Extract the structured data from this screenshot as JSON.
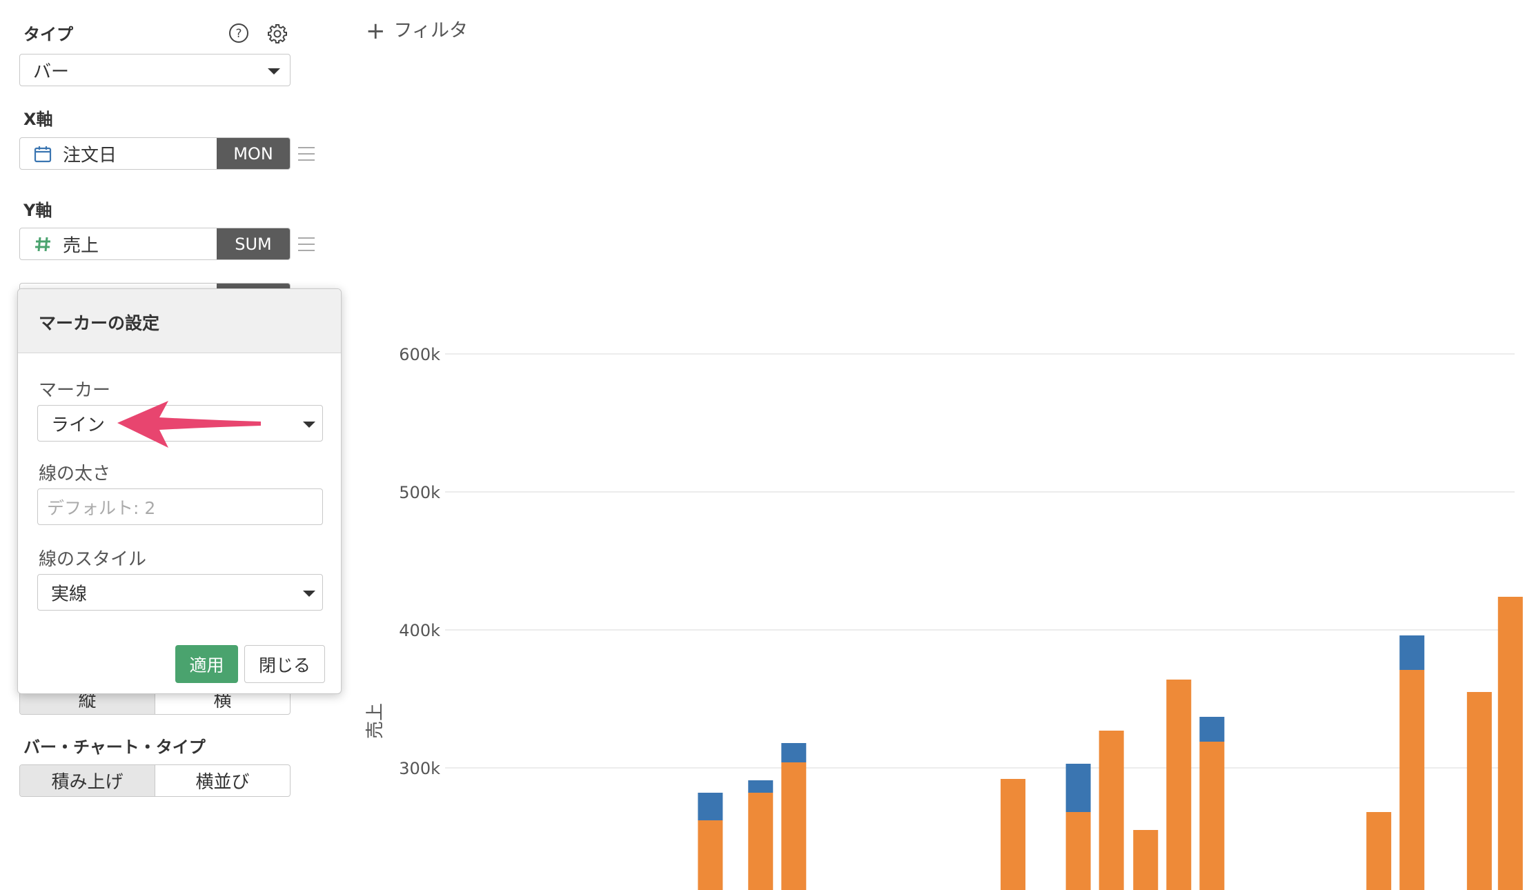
{
  "sidebar": {
    "type_label": "タイプ",
    "type_value": "バー",
    "x_axis_label": "X軸",
    "x_field": {
      "name": "注文日",
      "tag": "MON",
      "icon": "calendar-icon"
    },
    "y_axis_label": "Y軸",
    "y_field": {
      "name": "売上",
      "tag": "SUM",
      "icon": "hash-icon"
    },
    "orientation": {
      "options": [
        "縦",
        "横"
      ],
      "selected": "縦"
    },
    "bar_chart_type_label": "バー・チャート・タイプ",
    "bar_chart_type": {
      "options": [
        "積み上げ",
        "横並び"
      ],
      "selected": "積み上げ"
    }
  },
  "popover": {
    "title": "マーカーの設定",
    "marker_label": "マーカー",
    "marker_value": "ライン",
    "width_label": "線の太さ",
    "width_placeholder": "デフォルト: 2",
    "style_label": "線のスタイル",
    "style_value": "実線",
    "apply_label": "適用",
    "close_label": "閉じる"
  },
  "filter": {
    "add_label": "フィルタ"
  },
  "colors": {
    "orange": "#ee8a38",
    "blue": "#3a75b1",
    "apply_green": "#4aa36e",
    "arrow": "#e8456f"
  },
  "chart_data": {
    "type": "bar",
    "stacked": true,
    "ylabel": "売上",
    "yticks": [
      300000,
      400000,
      500000,
      600000
    ],
    "ytick_labels": [
      "300k",
      "400k",
      "500k",
      "600k"
    ],
    "grid": true,
    "x_positions": [
      0.248,
      0.295,
      0.326,
      0.531,
      0.592,
      0.623,
      0.655,
      0.686,
      0.717,
      0.873,
      0.904,
      0.967,
      0.996
    ],
    "series": [
      {
        "color": "#ee8a38",
        "values": [
          262000,
          282000,
          304000,
          292000,
          268000,
          327000,
          255000,
          364000,
          319000,
          268000,
          371000,
          355000,
          424000
        ]
      },
      {
        "color": "#3a75b1",
        "values": [
          20000,
          9000,
          14000,
          0,
          35000,
          0,
          0,
          0,
          18000,
          0,
          25000,
          0,
          0
        ]
      }
    ]
  }
}
